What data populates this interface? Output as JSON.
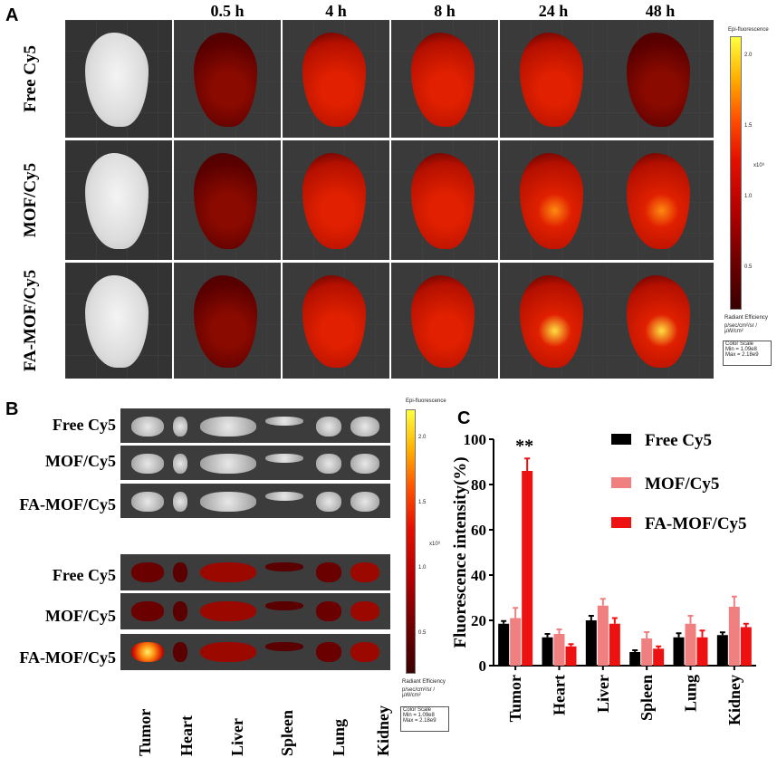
{
  "panels": {
    "a": "A",
    "b": "B",
    "c": "C"
  },
  "panelA": {
    "time_points": [
      "0.5 h",
      "4 h",
      "8 h",
      "24 h",
      "48 h"
    ],
    "groups": [
      "Free Cy5",
      "MOF/Cy5",
      "FA-MOF/Cy5"
    ]
  },
  "colorbar": {
    "title": "Epi-fluorescence",
    "ticks": [
      "2.0",
      "1.5",
      "1.0",
      "0.5"
    ],
    "exponent": "x10⁹",
    "unit_title": "Radiant Efficiency",
    "unit": "p/sec/cm²/sr / µW/cm²",
    "scale_title": "Color Scale",
    "scale_min": "Min = 1.09e8",
    "scale_max": "Max = 2.18e9"
  },
  "panelB": {
    "groups": [
      "Free Cy5",
      "MOF/Cy5",
      "FA-MOF/Cy5"
    ],
    "organs": [
      "Tumor",
      "Heart",
      "Liver",
      "Spleen",
      "Lung",
      "Kidney"
    ]
  },
  "chart_data": {
    "type": "bar",
    "ylabel": "Fluorescence intensity(%)",
    "ylim": [
      0,
      100
    ],
    "yticks": [
      0,
      20,
      40,
      60,
      80,
      100
    ],
    "categories": [
      "Tumor",
      "Heart",
      "Liver",
      "Spleen",
      "Lung",
      "Kidney"
    ],
    "series": [
      {
        "name": "Free Cy5",
        "color": "#000000",
        "values": [
          18.5,
          12.5,
          20,
          6,
          12.5,
          13.5
        ],
        "errors": [
          1.2,
          1.5,
          2,
          0.8,
          1.8,
          1.2
        ]
      },
      {
        "name": "MOF/Cy5",
        "color": "#f08080",
        "values": [
          21,
          14,
          26.5,
          12,
          18.5,
          26
        ],
        "errors": [
          4.5,
          2,
          3,
          2.8,
          3.5,
          4.5
        ]
      },
      {
        "name": "FA-MOF/Cy5",
        "color": "#ee1111",
        "values": [
          86,
          8.5,
          18.5,
          7.5,
          12.5,
          17
        ],
        "errors": [
          5.5,
          1,
          2.5,
          1,
          3,
          1.5
        ]
      }
    ],
    "annotation": "**",
    "legend_position": "top-right"
  }
}
